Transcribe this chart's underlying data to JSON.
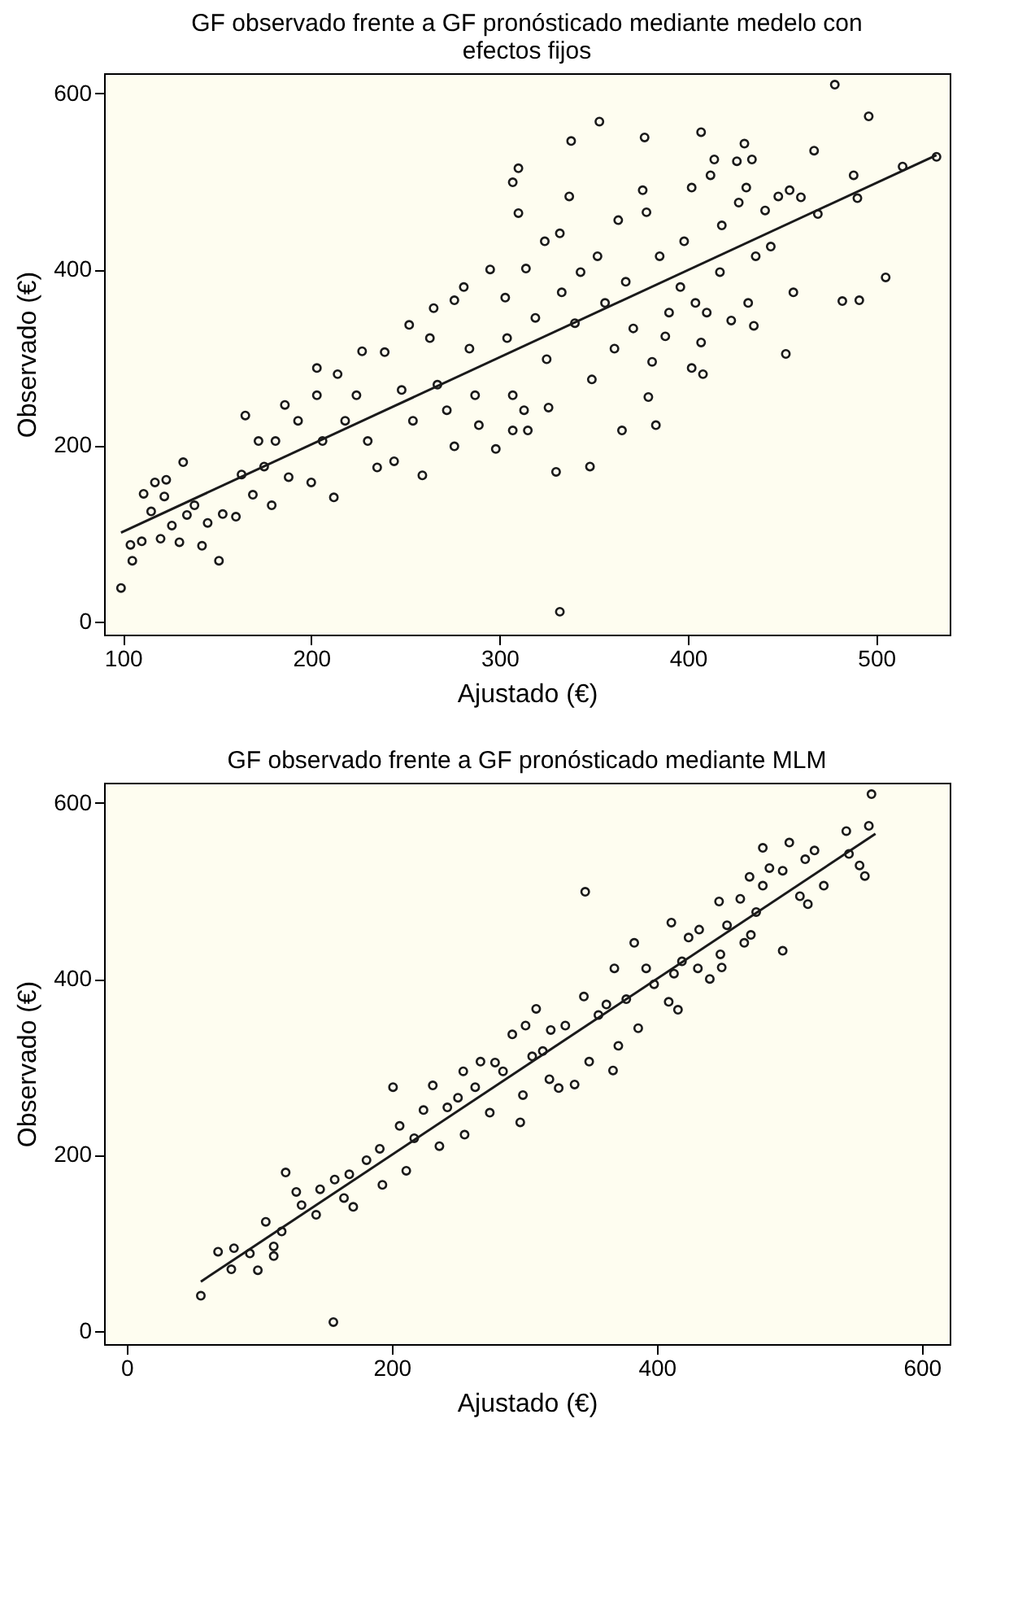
{
  "chart_data": [
    {
      "type": "scatter",
      "title": "GF observado frente a GF pronósticado mediante medelo con efectos fijos",
      "xlabel": "Ajustado (€)",
      "ylabel": "Observado (€)",
      "xlim": [
        90,
        539
      ],
      "ylim": [
        -15,
        623
      ],
      "xticks": [
        100,
        200,
        300,
        400,
        500
      ],
      "yticks": [
        0,
        200,
        400,
        600
      ],
      "grid": false,
      "series": [
        {
          "marker": "circle",
          "color": "#1a1a1a",
          "x": [
            99,
            105,
            104,
            110,
            120,
            111,
            117,
            123,
            122,
            115,
            126,
            130,
            132,
            138,
            134,
            142,
            145,
            151,
            153,
            160,
            165,
            163,
            169,
            175,
            179,
            172,
            181,
            186,
            188,
            193,
            203,
            203,
            200,
            212,
            206,
            214,
            218,
            227,
            224,
            230,
            235,
            239,
            244,
            252,
            248,
            259,
            254,
            263,
            265,
            267,
            272,
            276,
            276,
            281,
            284,
            287,
            289,
            295,
            298,
            303,
            304,
            307,
            307,
            310,
            307,
            310,
            315,
            313,
            314,
            319,
            324,
            326,
            325,
            330,
            332,
            332,
            333,
            337,
            338,
            340,
            343,
            348,
            349,
            352,
            353,
            356,
            361,
            363,
            365,
            367,
            371,
            376,
            377,
            378,
            379,
            381,
            383,
            385,
            388,
            390,
            396,
            398,
            402,
            402,
            404,
            407,
            407,
            408,
            410,
            412,
            414,
            417,
            418,
            423,
            426,
            427,
            430,
            431,
            432,
            434,
            435,
            436,
            441,
            444,
            448,
            452,
            454,
            456,
            460,
            467,
            469,
            478,
            482,
            488,
            490,
            491,
            496,
            505,
            514,
            532
          ],
          "values": [
            38,
            69,
            87,
            91,
            94,
            145,
            158,
            161,
            142,
            125,
            109,
            90,
            181,
            132,
            121,
            86,
            112,
            69,
            122,
            119,
            234,
            167,
            144,
            176,
            132,
            205,
            205,
            246,
            164,
            228,
            257,
            288,
            158,
            141,
            205,
            281,
            228,
            307,
            257,
            205,
            175,
            306,
            182,
            337,
            263,
            166,
            228,
            322,
            356,
            269,
            240,
            365,
            199,
            380,
            310,
            257,
            223,
            400,
            196,
            368,
            322,
            257,
            217,
            515,
            499,
            464,
            217,
            240,
            401,
            345,
            432,
            243,
            298,
            170,
            441,
            11,
            374,
            483,
            546,
            339,
            397,
            176,
            275,
            415,
            568,
            362,
            310,
            456,
            217,
            386,
            333,
            490,
            550,
            465,
            255,
            295,
            223,
            415,
            324,
            351,
            380,
            432,
            288,
            493,
            362,
            317,
            556,
            281,
            351,
            507,
            525,
            397,
            450,
            342,
            523,
            476,
            543,
            493,
            362,
            525,
            336,
            415,
            467,
            426,
            483,
            304,
            490,
            374,
            482,
            535,
            463,
            610,
            364,
            507,
            481,
            365,
            574,
            391,
            517,
            528
          ]
        },
        {
          "type": "line",
          "color": "#1a1a1a",
          "x": [
            99,
            532
          ],
          "values": [
            101,
            530
          ]
        }
      ]
    },
    {
      "type": "scatter",
      "title": "GF observado frente a GF pronósticado mediante MLM",
      "xlabel": "Ajustado (€)",
      "ylabel": "Observado (€)",
      "xlim": [
        -17,
        621
      ],
      "ylim": [
        -15,
        623
      ],
      "xticks": [
        0,
        200,
        400,
        600
      ],
      "yticks": [
        0,
        200,
        400,
        600
      ],
      "grid": false,
      "series": [
        {
          "marker": "circle",
          "color": "#1a1a1a",
          "x": [
            56,
            69,
            79,
            81,
            93,
            99,
            105,
            111,
            111,
            117,
            120,
            128,
            132,
            143,
            146,
            157,
            164,
            171,
            168,
            181,
            191,
            193,
            201,
            206,
            211,
            217,
            224,
            231,
            236,
            242,
            254,
            250,
            255,
            263,
            267,
            274,
            278,
            284,
            291,
            297,
            299,
            301,
            306,
            309,
            314,
            320,
            319,
            326,
            331,
            338,
            346,
            345,
            349,
            356,
            362,
            367,
            368,
            371,
            377,
            383,
            386,
            392,
            398,
            409,
            411,
            413,
            416,
            419,
            424,
            431,
            432,
            440,
            447,
            448,
            449,
            453,
            463,
            466,
            470,
            471,
            475,
            480,
            480,
            485,
            495,
            495,
            500,
            508,
            512,
            514,
            519,
            526,
            543,
            545,
            553,
            557,
            560,
            156,
            562
          ],
          "values": [
            40,
            90,
            70,
            94,
            88,
            69,
            124,
            85,
            96,
            113,
            180,
            158,
            143,
            132,
            161,
            172,
            151,
            141,
            178,
            194,
            207,
            166,
            277,
            233,
            182,
            219,
            251,
            279,
            210,
            254,
            295,
            265,
            223,
            277,
            306,
            248,
            305,
            295,
            337,
            237,
            268,
            347,
            312,
            366,
            318,
            342,
            286,
            276,
            347,
            280,
            499,
            380,
            306,
            359,
            371,
            296,
            412,
            324,
            377,
            441,
            344,
            412,
            394,
            374,
            464,
            406,
            365,
            420,
            447,
            412,
            456,
            400,
            488,
            428,
            413,
            461,
            491,
            441,
            516,
            450,
            476,
            549,
            506,
            526,
            432,
            523,
            555,
            494,
            536,
            485,
            546,
            506,
            568,
            542,
            529,
            517,
            574,
            10,
            610
          ]
        },
        {
          "type": "line",
          "color": "#1a1a1a",
          "x": [
            56,
            565
          ],
          "values": [
            56,
            565
          ]
        }
      ]
    }
  ]
}
